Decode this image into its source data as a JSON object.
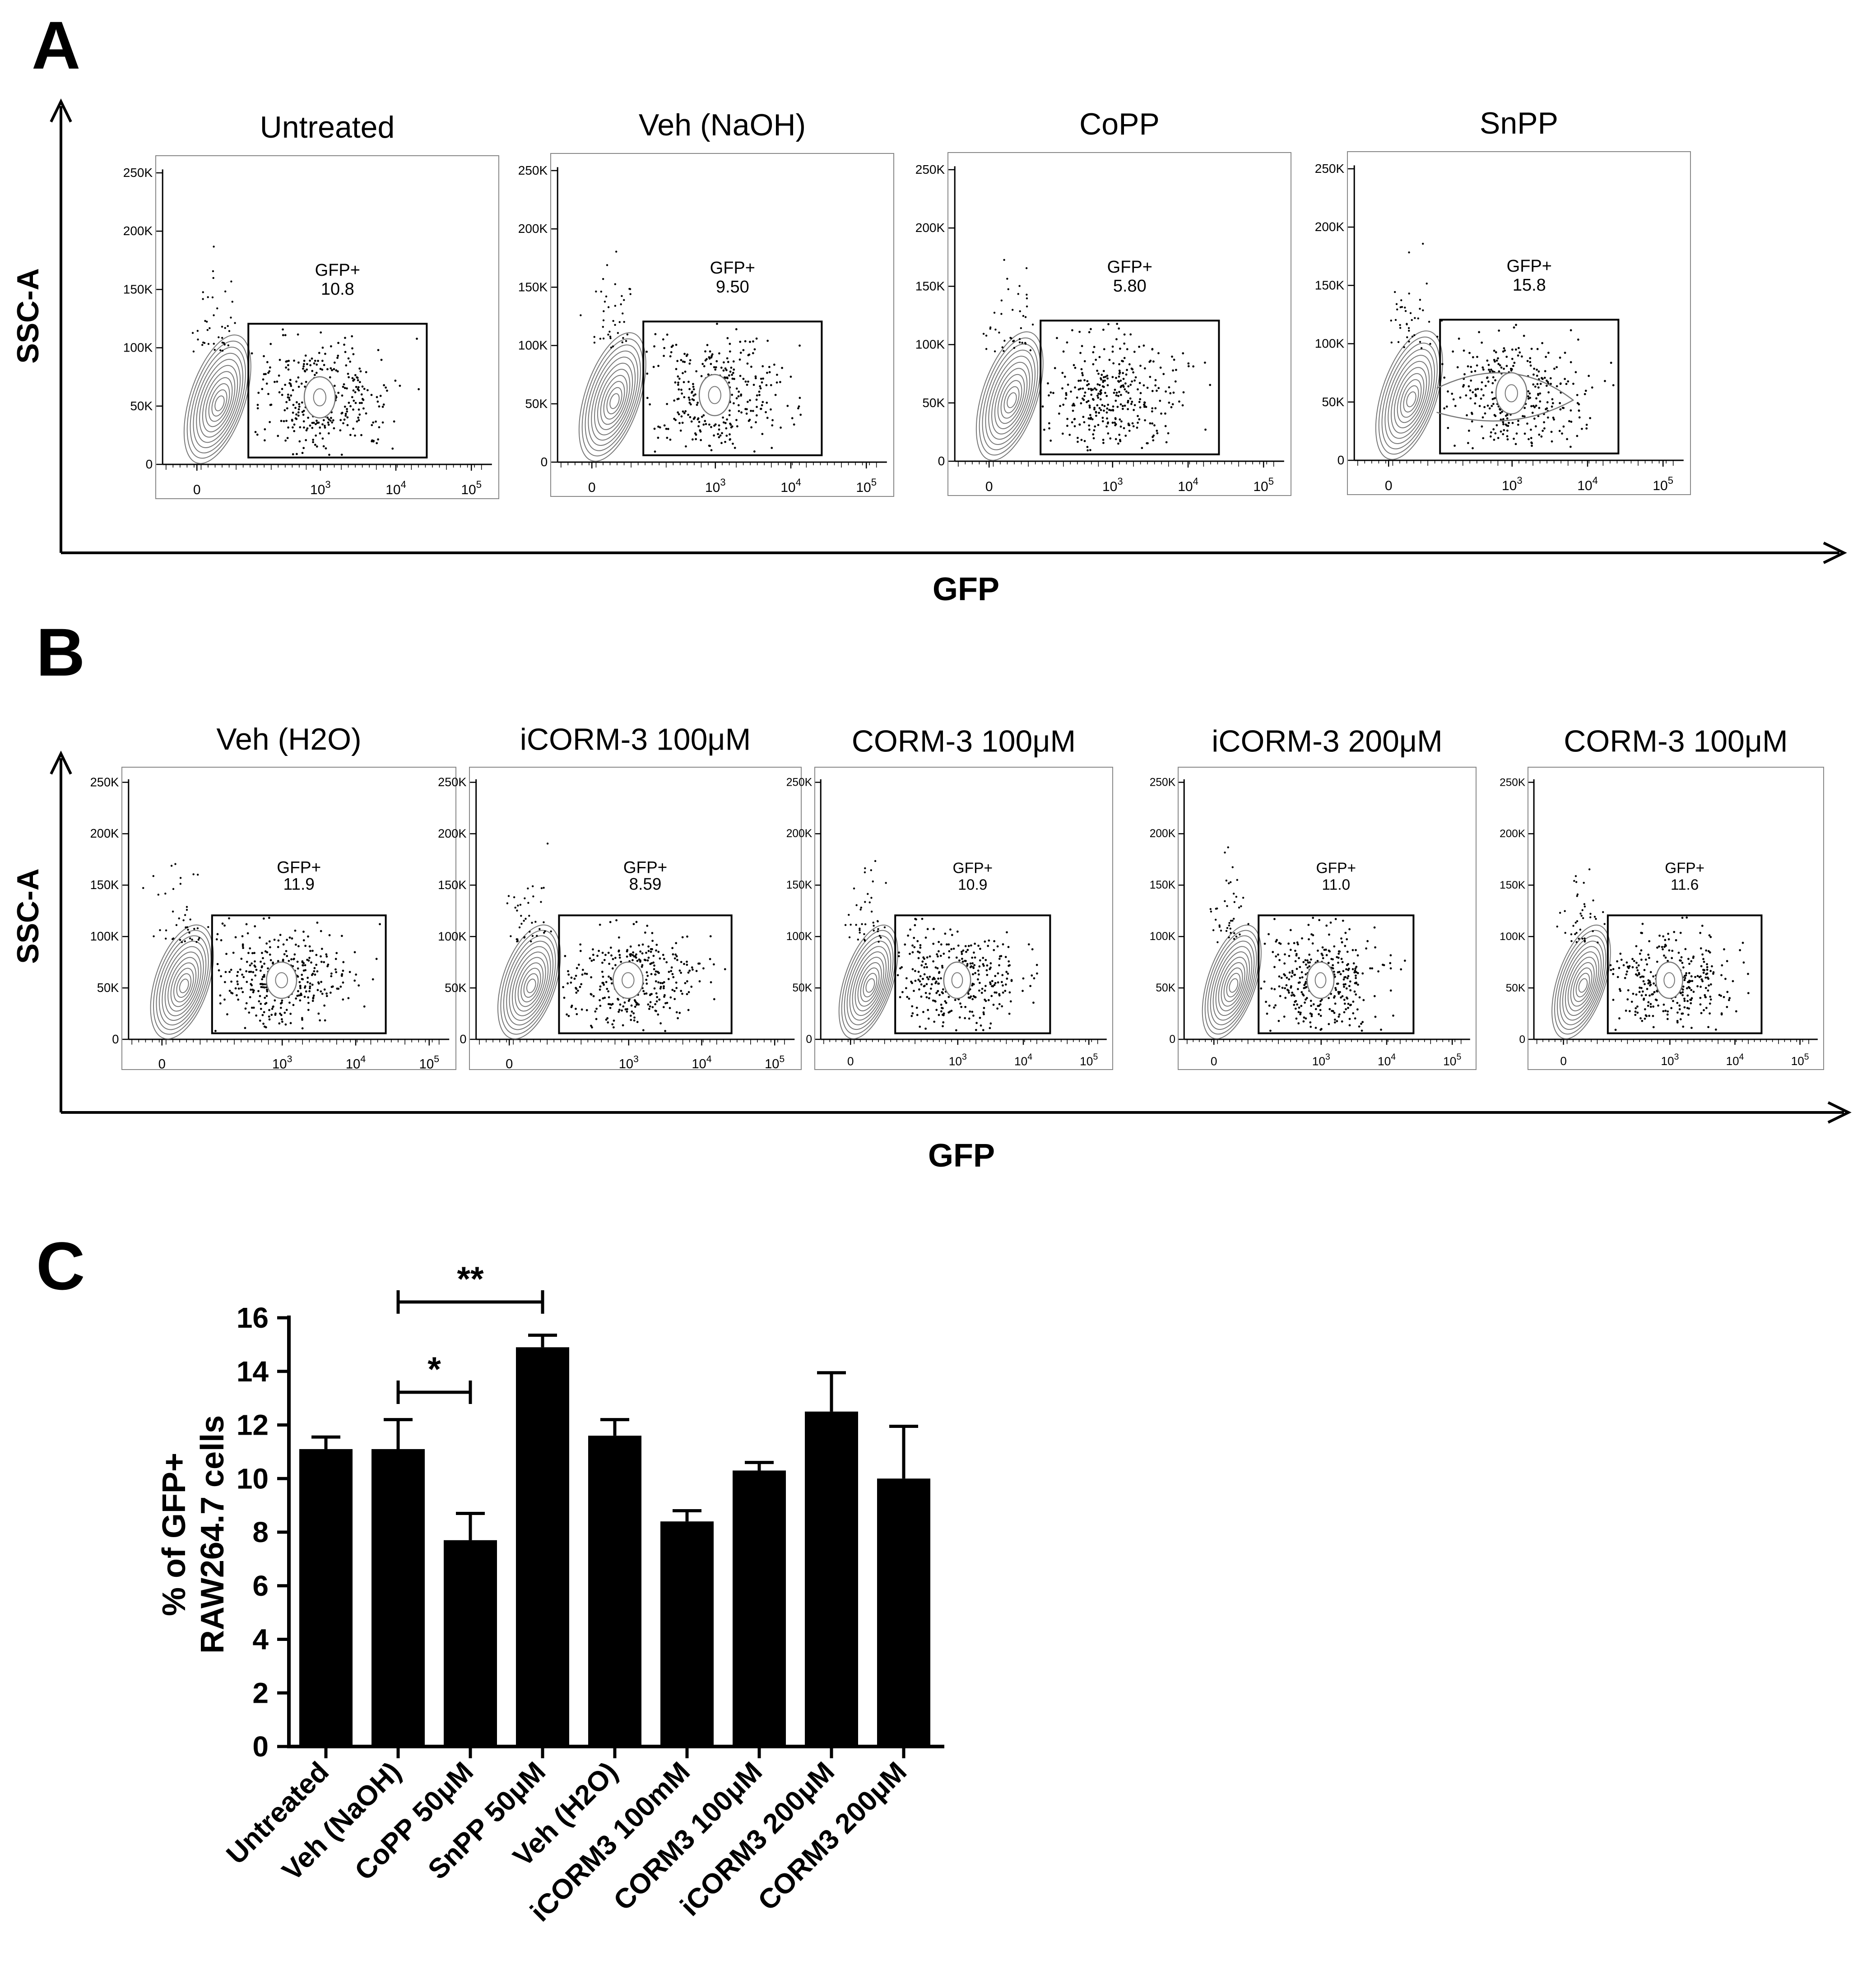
{
  "figure": {
    "panel_labels": {
      "a": "A",
      "b": "B",
      "c": "C"
    },
    "panel_a": {
      "y_label": "SSC-A",
      "x_label": "GFP",
      "gate_name": "GFP+",
      "titles": [
        "Untreated",
        "Veh (NaOH)",
        "CoPP",
        "SnPP"
      ],
      "gate_values": [
        "10.8",
        "9.50",
        "5.80",
        "15.8"
      ]
    },
    "panel_b": {
      "y_label": "SSC-A",
      "x_label": "GFP",
      "gate_name": "GFP+",
      "titles": [
        "Veh (H2O)",
        "iCORM-3 100μM",
        "CORM-3 100μM",
        "iCORM-3 200μM",
        "CORM-3 100μM"
      ],
      "gate_values": [
        "11.9",
        "8.59",
        "10.9",
        "11.0",
        "11.6"
      ]
    },
    "flow_axes": {
      "y_ticks": [
        "0",
        "50K",
        "100K",
        "150K",
        "200K",
        "250K"
      ],
      "x_ticks": [
        "0",
        "10",
        "10",
        "10"
      ],
      "x_tick_exponents": [
        "",
        "3",
        "4",
        "5"
      ]
    }
  },
  "chart_data": {
    "type": "bar",
    "ylabel_line1": "% of GFP+",
    "ylabel_line2": "RAW264.7 cells",
    "ylim": [
      0,
      16
    ],
    "yticks": [
      0,
      2,
      4,
      6,
      8,
      10,
      12,
      14,
      16
    ],
    "categories": [
      "Untreated",
      "Veh (NaOH)",
      "CoPP 50μM",
      "SnPP 50μM",
      "Veh (H2O)",
      "iCORM3 100mM",
      "CORM3 100μM",
      "iCORM3 200μM",
      "CORM3 200μM"
    ],
    "values": [
      11.1,
      11.1,
      7.7,
      14.9,
      11.6,
      8.4,
      10.3,
      12.5,
      10.0
    ],
    "errors": [
      0.45,
      1.1,
      1.0,
      0.45,
      0.6,
      0.4,
      0.3,
      1.45,
      1.95
    ],
    "significance": [
      {
        "from": 1,
        "to": 3,
        "label": "**"
      },
      {
        "from": 1,
        "to": 2,
        "label": "*"
      }
    ],
    "bar_color": "#000000"
  }
}
